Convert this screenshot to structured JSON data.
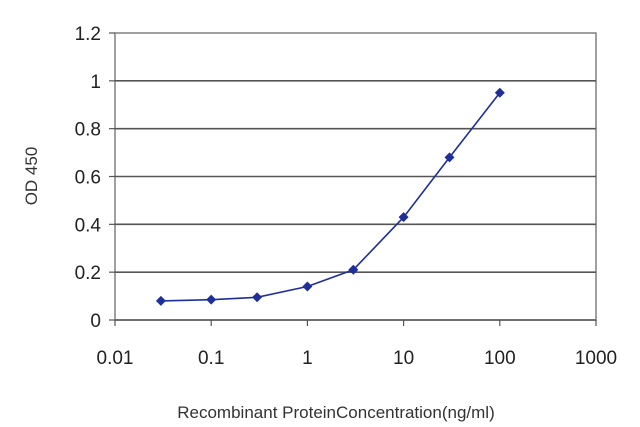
{
  "chart_data": {
    "type": "line",
    "x_scale": "log",
    "xlim": [
      0.01,
      1000
    ],
    "ylim": [
      0,
      1.2
    ],
    "x_ticks": [
      "0.01",
      "0.1",
      "1",
      "10",
      "100",
      "1000"
    ],
    "y_ticks": [
      "0",
      "0.2",
      "0.4",
      "0.6",
      "0.8",
      "1",
      "1.2"
    ],
    "xlabel": "Recombinant ProteinConcentration(ng/ml)",
    "ylabel": "OD 450",
    "grid": "horizontal",
    "series": [
      {
        "color": "#1f2f9a",
        "marker": "diamond",
        "points": [
          {
            "x": 0.03,
            "y": 0.08
          },
          {
            "x": 0.1,
            "y": 0.085
          },
          {
            "x": 0.3,
            "y": 0.095
          },
          {
            "x": 1,
            "y": 0.14
          },
          {
            "x": 3,
            "y": 0.21
          },
          {
            "x": 10,
            "y": 0.43
          },
          {
            "x": 30,
            "y": 0.68
          },
          {
            "x": 100,
            "y": 0.95
          }
        ]
      }
    ]
  }
}
